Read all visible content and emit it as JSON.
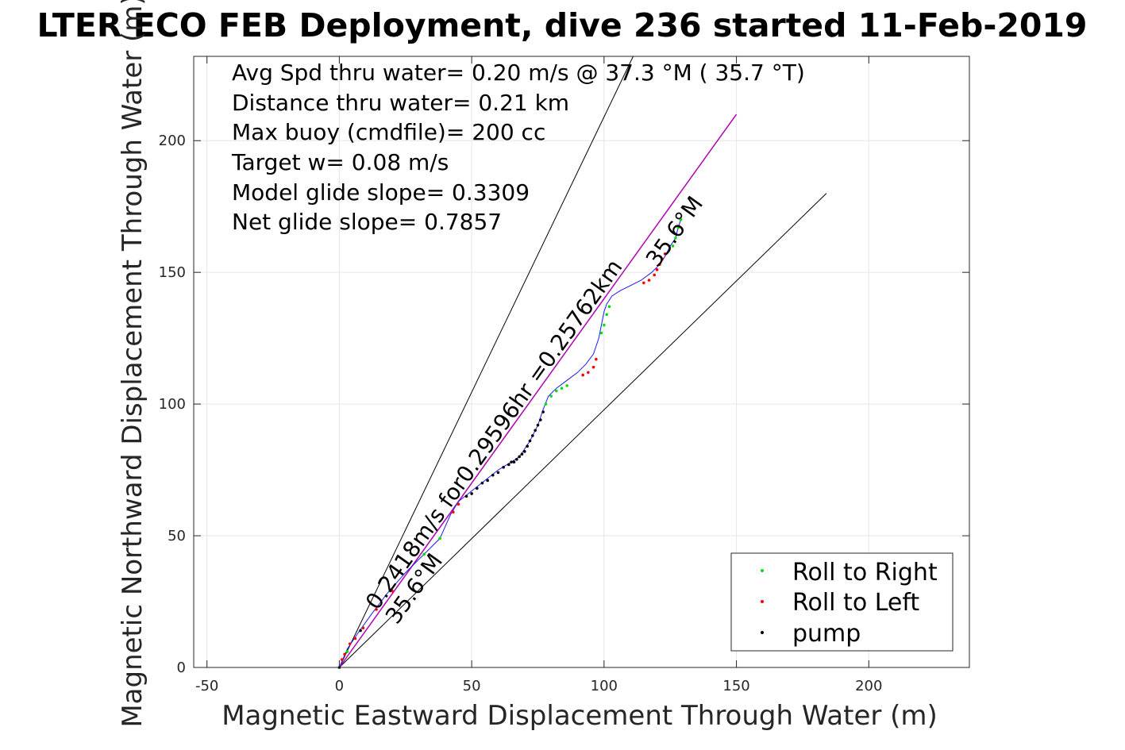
{
  "chart_data": {
    "type": "scatter",
    "title": "LTER ECO FEB Deployment, dive 236 started 11-Feb-2019",
    "xlabel": "Magnetic Eastward Displacement Through Water (m)",
    "ylabel": "Magnetic Northward Displacement Through Water (m)",
    "xlim": [
      -55,
      238
    ],
    "ylim": [
      0,
      232
    ],
    "xticks": [
      -50,
      0,
      50,
      100,
      150,
      200
    ],
    "yticks": [
      0,
      50,
      100,
      150,
      200
    ],
    "grid": true,
    "legend_position": "bottom-right",
    "notes": [
      "Avg Spd thru water=  0.20 m/s @  37.3 °M ( 35.7 °T)",
      "Distance thru water=  0.21 km",
      "Max buoy (cmdfile)= 200 cc",
      "Target w= 0.08 m/s",
      "Model glide slope= 0.3309",
      "Net glide slope= 0.7857"
    ],
    "annotations": {
      "track_label": "0.2418m/s for0.29596hr =0.25762km",
      "heading_start": "35.6°M",
      "heading_end": "35.6°M"
    },
    "reference_lines": [
      {
        "name": "envelope-upper",
        "color": "#000000",
        "x": [
          0,
          111
        ],
        "y": [
          0,
          232
        ]
      },
      {
        "name": "envelope-lower",
        "color": "#000000",
        "x": [
          0,
          184
        ],
        "y": [
          0,
          180
        ]
      },
      {
        "name": "net-heading",
        "color": "#b000b0",
        "x": [
          0,
          150
        ],
        "y": [
          0,
          210
        ]
      }
    ],
    "track": {
      "color": "#1a1aff",
      "x": [
        0,
        3,
        7,
        12,
        18,
        25,
        32,
        38,
        42,
        45,
        50,
        55,
        60,
        65,
        68,
        72,
        75,
        77,
        79,
        82,
        86,
        90,
        93,
        96,
        98,
        99,
        100,
        101,
        103,
        106,
        110,
        114,
        118,
        121,
        123,
        125,
        127,
        128,
        129
      ],
      "y": [
        0,
        7,
        13,
        20,
        28,
        36,
        43,
        49,
        58,
        63,
        67,
        71,
        75,
        78,
        80,
        86,
        92,
        98,
        103,
        106,
        109,
        112,
        115,
        119,
        125,
        130,
        135,
        138,
        141,
        143,
        145,
        147,
        150,
        153,
        156,
        160,
        163,
        167,
        170
      ]
    },
    "series": [
      {
        "name": "Roll to Right",
        "color": "#00e000",
        "x": [
          3,
          32,
          38,
          78,
          80,
          82,
          84,
          86,
          99,
          100,
          101,
          102,
          126,
          127,
          128,
          129
        ],
        "y": [
          6,
          43,
          49,
          100,
          103,
          105,
          106,
          107,
          127,
          130,
          134,
          137,
          160,
          163,
          167,
          170
        ]
      },
      {
        "name": "Roll to Left",
        "color": "#ff0000",
        "x": [
          1,
          2,
          4,
          6,
          9,
          14,
          20,
          43,
          45,
          92,
          94,
          96,
          97,
          115,
          117,
          119,
          120,
          121,
          122,
          123
        ],
        "y": [
          3,
          5,
          9,
          11,
          15,
          22,
          29,
          59,
          62,
          111,
          112,
          114,
          117,
          146,
          147,
          149,
          151,
          153,
          155,
          157
        ]
      },
      {
        "name": "pump",
        "color": "#000000",
        "x": [
          0,
          8,
          48,
          50,
          52,
          54,
          56,
          58,
          60,
          62,
          64,
          65,
          66,
          67,
          68,
          69,
          70,
          71,
          72,
          73,
          74,
          75,
          76,
          77
        ],
        "y": [
          0,
          14,
          65,
          66,
          68,
          70,
          71,
          73,
          74,
          76,
          77,
          78,
          78,
          79,
          80,
          81,
          82,
          84,
          86,
          88,
          90,
          92,
          94,
          97
        ]
      }
    ]
  }
}
